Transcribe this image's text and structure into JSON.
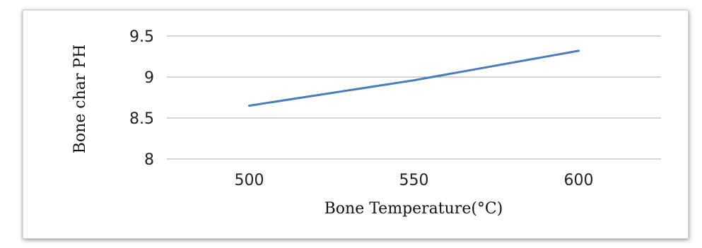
{
  "chart_data": {
    "type": "line",
    "title": "",
    "xlabel": "Bone Temperature(°C)",
    "ylabel": "Bone char PH",
    "x": [
      500,
      550,
      600
    ],
    "x_ticks": [
      "500",
      "550",
      "600"
    ],
    "y_ticks": [
      "8",
      "8.5",
      "9",
      "9.5"
    ],
    "ylim": [
      8,
      9.5
    ],
    "xlim": [
      475,
      625
    ],
    "grid": true,
    "legend": "none",
    "series": [
      {
        "values": [
          8.65,
          8.96,
          9.32
        ],
        "color": "#4a7ebb"
      }
    ]
  }
}
